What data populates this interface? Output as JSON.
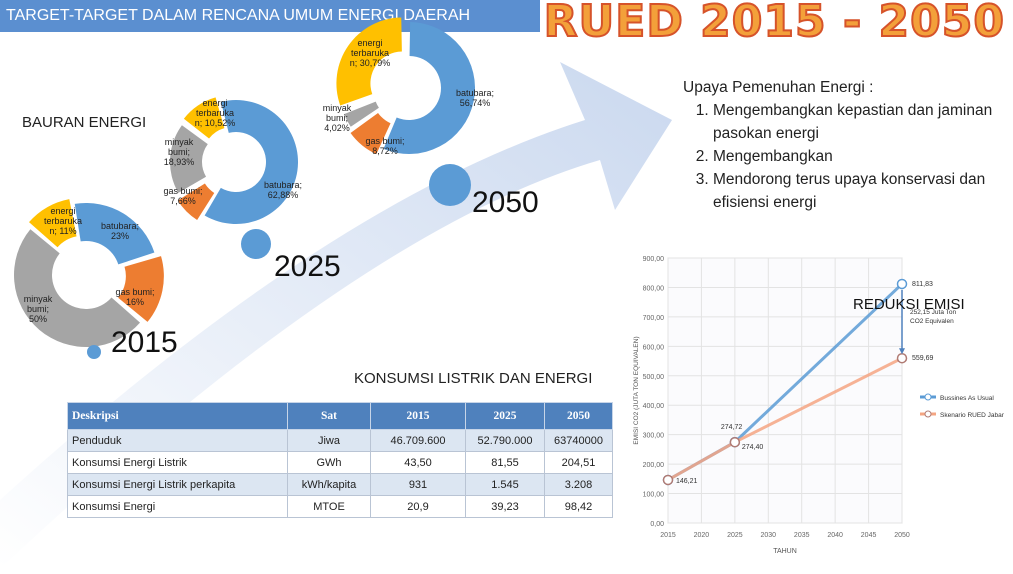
{
  "banner": "TARGET-TARGET DALAM RENCANA UMUM ENERGI DAERAH",
  "title": "RUED 2015 - 2050",
  "bauran_label": "BAURAN ENERGI",
  "years": [
    "2015",
    "2025",
    "2050"
  ],
  "donuts": [
    {
      "year": "2015",
      "segments": [
        {
          "label": "batubara;\n23%",
          "value": 23,
          "color": "#5b9bd5"
        },
        {
          "label": "gas bumi;\n16%",
          "value": 16,
          "color": "#ed7d31"
        },
        {
          "label": "minyak\nbumi;\n50%",
          "value": 50,
          "color": "#a5a5a5"
        },
        {
          "label": "energi\nterbaruka\nn; 11%",
          "value": 11,
          "color": "#ffc000"
        }
      ]
    },
    {
      "year": "2025",
      "segments": [
        {
          "label": "batubara;\n62,88%",
          "value": 62.88,
          "color": "#5b9bd5"
        },
        {
          "label": "gas bumi;\n7,66%",
          "value": 7.66,
          "color": "#ed7d31"
        },
        {
          "label": "minyak\nbumi;\n18,93%",
          "value": 18.93,
          "color": "#a5a5a5"
        },
        {
          "label": "energi\nterbaruka\nn; 10,52%",
          "value": 10.52,
          "color": "#ffc000"
        }
      ]
    },
    {
      "year": "2050",
      "segments": [
        {
          "label": "batubara;\n56,74%",
          "value": 56.74,
          "color": "#5b9bd5"
        },
        {
          "label": "gas bumi;\n8,72%",
          "value": 8.72,
          "color": "#ed7d31"
        },
        {
          "label": "minyak\nbumi;\n4,02%",
          "value": 4.02,
          "color": "#a5a5a5"
        },
        {
          "label": "energi\nterbaruka\nn; 30,79%",
          "value": 30.79,
          "color": "#ffc000"
        }
      ]
    }
  ],
  "upaya": {
    "heading": "Upaya Pemenuhan Energi :",
    "items": [
      "Mengembangkan kepastian dan jaminan pasokan energi",
      "Mengembangkan",
      "Mendorong terus upaya konservasi dan efisiensi energi"
    ]
  },
  "konsumsi_title": "KONSUMSI LISTRIK DAN ENERGI",
  "table": {
    "headers": [
      "Deskripsi",
      "Sat",
      "2015",
      "2025",
      "2050"
    ],
    "rows": [
      [
        "Penduduk",
        "Jiwa",
        "46.709.600",
        "52.790.000",
        "63740000"
      ],
      [
        "Konsumsi Energi Listrik",
        "GWh",
        "43,50",
        "81,55",
        "204,51"
      ],
      [
        "Konsumsi Energi Listrik perkapita",
        "kWh/kapita",
        "931",
        "1.545",
        "3.208"
      ],
      [
        "Konsumsi Energi",
        "MTOE",
        "20,9",
        "39,23",
        "98,42"
      ]
    ]
  },
  "reduksi_label": "REDUKSI EMISI",
  "chart_data": {
    "type": "line",
    "x": [
      2015,
      2025,
      2050
    ],
    "series": [
      {
        "name": "Bussines As Usual",
        "values": [
          146.21,
          274.72,
          811.83
        ],
        "color": "#5b9bd5"
      },
      {
        "name": "Skenario RUED Jabar",
        "values": [
          146.21,
          274.4,
          559.69
        ],
        "color": "#f4a582"
      }
    ],
    "point_labels": [
      "146,21",
      "274,72",
      "274,40",
      "811,83",
      "559,69"
    ],
    "annotation": "252,15 Juta Ton\nCO2 Equivalen",
    "xlabel": "TAHUN",
    "ylabel": "EMISI CO2 (JUTA TON EQUIVALEN)",
    "xticks": [
      "2015",
      "2020",
      "2025",
      "2030",
      "2035",
      "2040",
      "2045",
      "2050"
    ],
    "yticks": [
      "0,00",
      "100,00",
      "200,00",
      "300,00",
      "400,00",
      "500,00",
      "600,00",
      "700,00",
      "800,00",
      "900,00"
    ],
    "xlim": [
      2015,
      2050
    ],
    "ylim": [
      0,
      900
    ],
    "grid": true,
    "legend": "right"
  }
}
